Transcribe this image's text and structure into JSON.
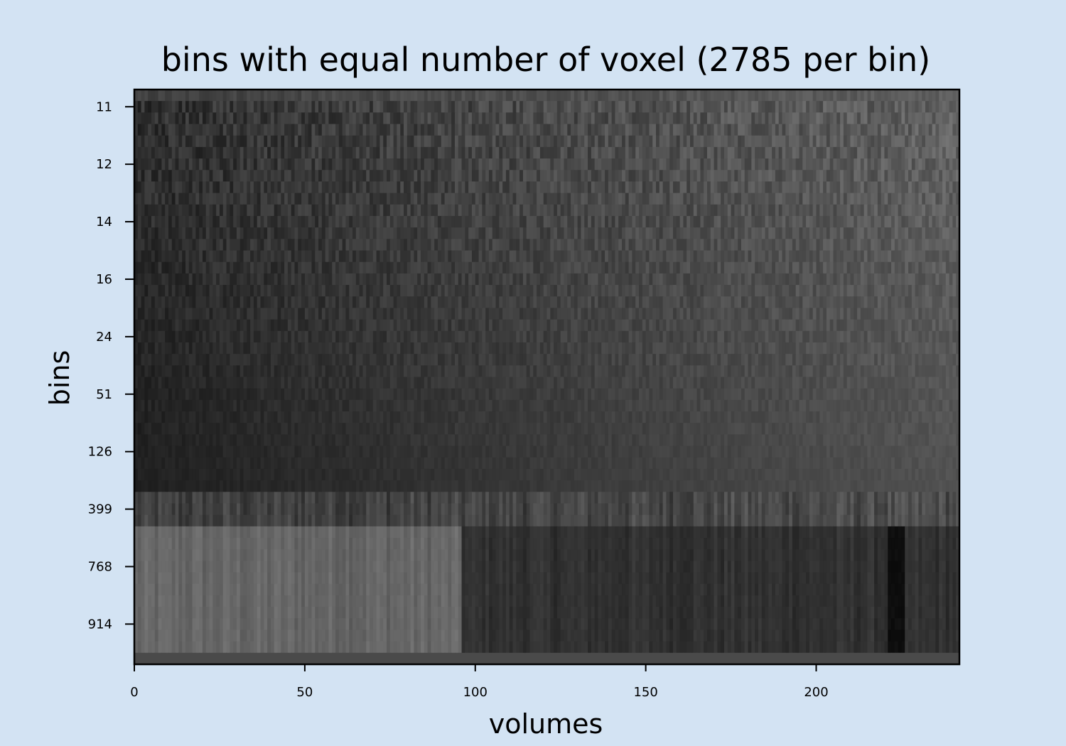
{
  "chart_data": {
    "type": "heatmap",
    "title": "bins with equal number of voxel (2785 per bin)",
    "xlabel": "volumes",
    "ylabel": "bins",
    "xlim": [
      0,
      242
    ],
    "x_ticks": [
      0,
      50,
      100,
      150,
      200
    ],
    "y_tick_labels": [
      "11",
      "12",
      "14",
      "16",
      "24",
      "51",
      "126",
      "399",
      "768",
      "914"
    ],
    "n_rows": 50,
    "colormap": "gray",
    "grid": false,
    "legend": "none",
    "description_free_regions": [
      {
        "rows": [
          0,
          34
        ],
        "trend": "dark on the left, gradually brighter toward the right"
      },
      {
        "rows": [
          35,
          37
        ],
        "trend": "medium gray with noisy vertical stripes"
      },
      {
        "rows": [
          38,
          48
        ],
        "trend": "light gray for volumes 0-95, dark for volumes 96-242, darkest column near volume 223"
      },
      {
        "rows": [
          49,
          49
        ],
        "trend": "uniform dark gray band"
      }
    ]
  }
}
